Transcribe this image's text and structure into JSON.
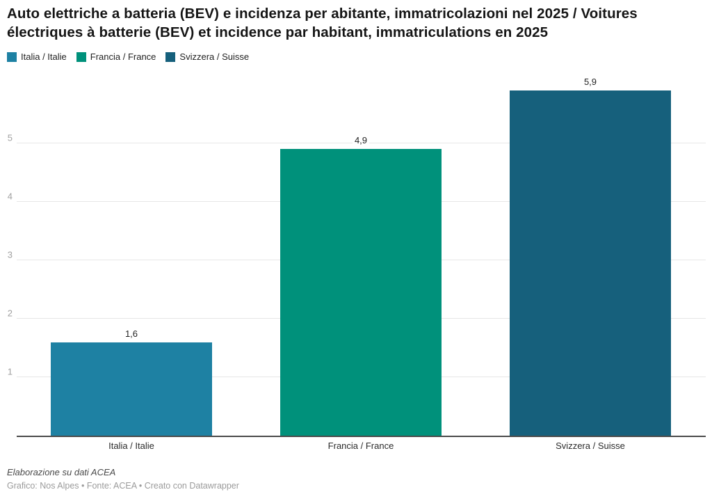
{
  "header": {
    "title": "Auto elettriche a batteria (BEV) e incidenza per abitante, immatricolazioni nel 2025 / Voitures électriques à batterie (BEV) et incidence par habitant, immatriculations en 2025"
  },
  "legend": {
    "items": [
      {
        "label": "Italia / Italie",
        "color": "#1e81a3"
      },
      {
        "label": "Francia / France",
        "color": "#00917b"
      },
      {
        "label": "Svizzera / Suisse",
        "color": "#16607c"
      }
    ]
  },
  "chart_data": {
    "type": "bar",
    "title": "Auto elettriche a batteria (BEV) e incidenza per abitante, immatricolazioni nel 2025 / Voitures électriques à batterie (BEV) et incidence par habitant, immatriculations en 2025",
    "categories": [
      "Italia / Italie",
      "Francia / France",
      "Svizzera / Suisse"
    ],
    "values": [
      1.6,
      4.9,
      5.9
    ],
    "value_labels": [
      "1,6",
      "4,9",
      "5,9"
    ],
    "colors": [
      "#1e81a3",
      "#00917b",
      "#16607c"
    ],
    "yticks": [
      1,
      2,
      3,
      4,
      5
    ],
    "ylim": [
      0,
      6.3
    ],
    "xlabel": "",
    "ylabel": "",
    "grid": "horizontal",
    "legend_position": "top"
  },
  "footer": {
    "note": "Elaborazione su dati ACEA",
    "credits": "Grafico: Nos Alpes • Fonte: ACEA • Creato con Datawrapper"
  }
}
